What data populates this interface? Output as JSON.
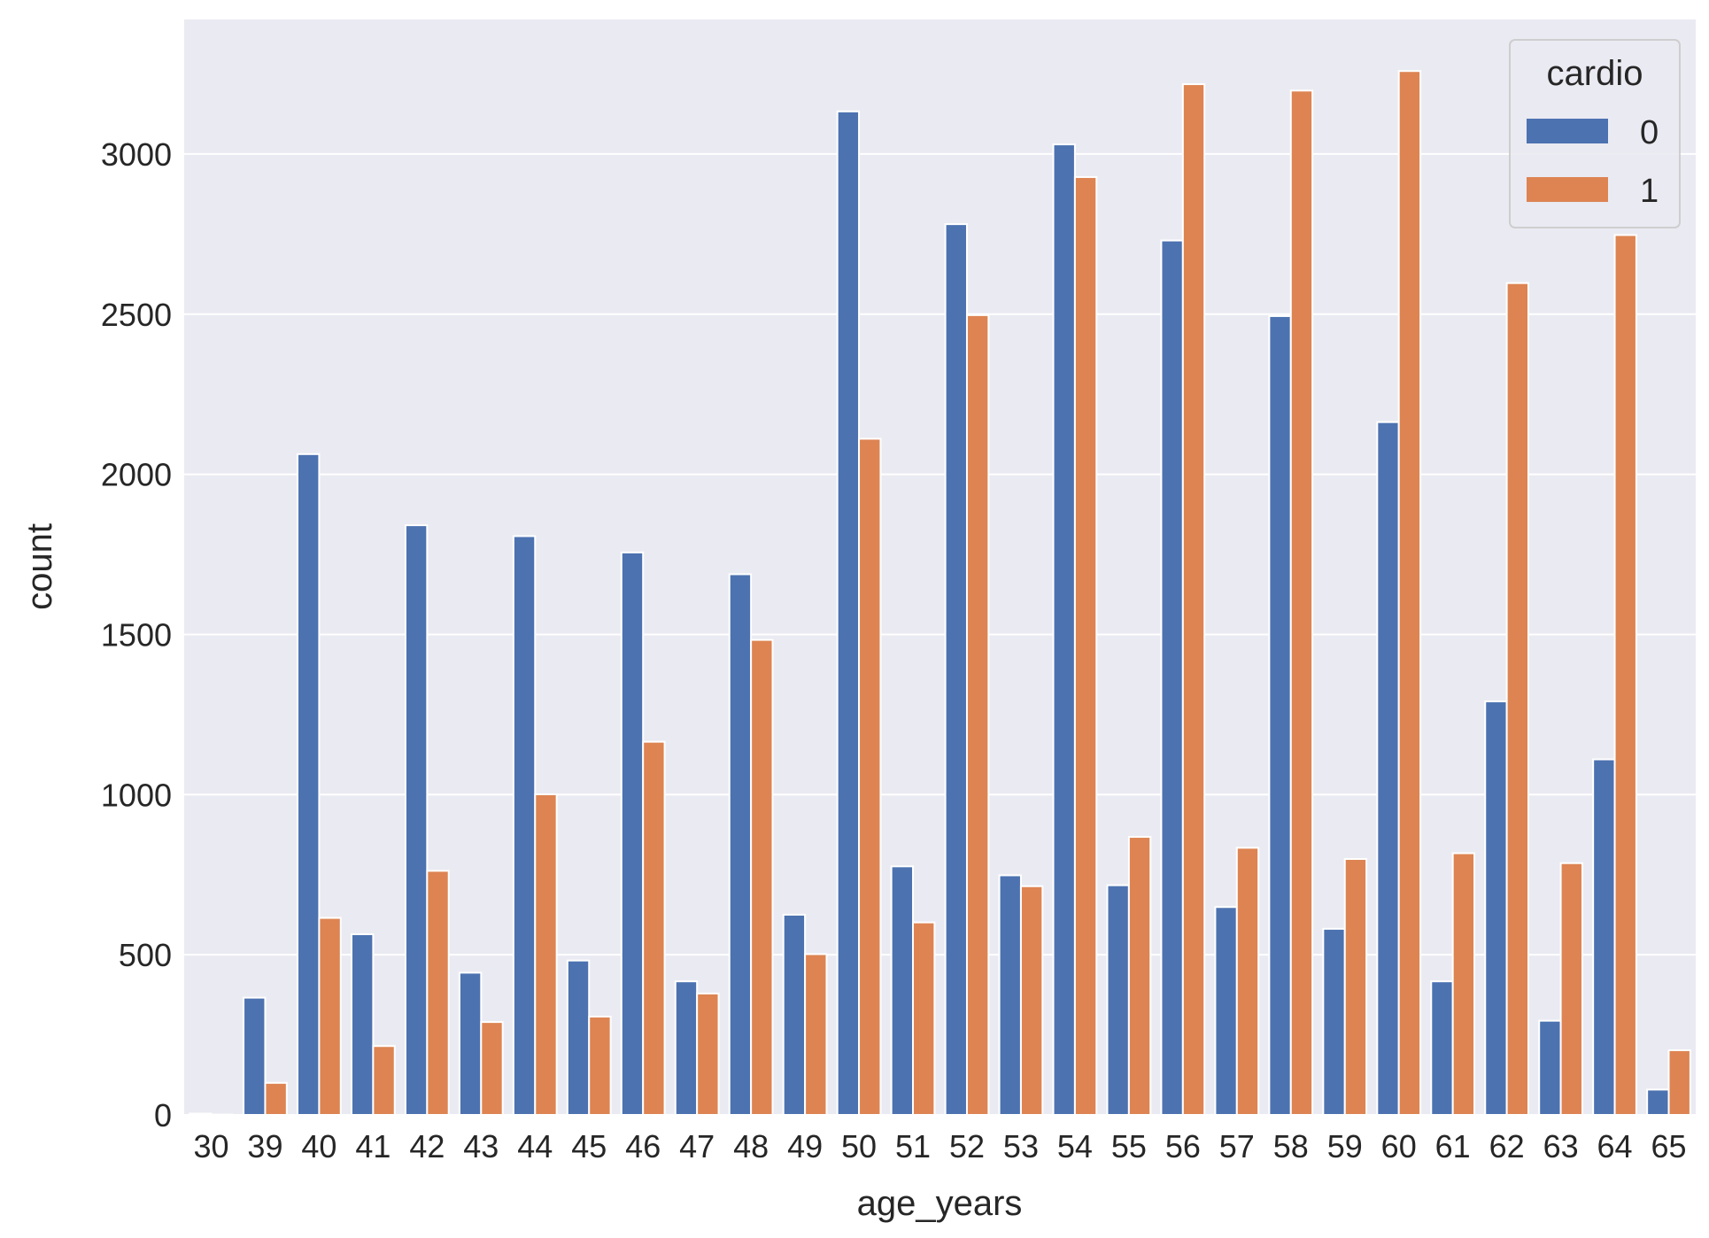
{
  "chart_data": {
    "type": "bar",
    "title": "",
    "xlabel": "age_years",
    "ylabel": "count",
    "ylim": [
      0,
      3420
    ],
    "yticks": [
      0,
      500,
      1000,
      1500,
      2000,
      2500,
      3000
    ],
    "grid": true,
    "categories": [
      "30",
      "39",
      "40",
      "41",
      "42",
      "43",
      "44",
      "45",
      "46",
      "47",
      "48",
      "49",
      "50",
      "51",
      "52",
      "53",
      "54",
      "55",
      "56",
      "57",
      "58",
      "59",
      "60",
      "61",
      "62",
      "63",
      "64",
      "65"
    ],
    "legend": {
      "title": "cardio",
      "placement": "top-right"
    },
    "series": [
      {
        "name": "0",
        "color": "#4c72b0",
        "values": [
          4,
          366,
          2063,
          564,
          1841,
          444,
          1807,
          482,
          1756,
          417,
          1688,
          625,
          3133,
          776,
          2781,
          748,
          3030,
          717,
          2730,
          649,
          2494,
          581,
          2163,
          417,
          1291,
          294,
          1110,
          79
        ]
      },
      {
        "name": "1",
        "color": "#dd8452",
        "values": [
          1,
          100,
          615,
          215,
          762,
          290,
          1001,
          307,
          1165,
          379,
          1483,
          502,
          2111,
          601,
          2497,
          714,
          2928,
          868,
          3218,
          834,
          3198,
          799,
          3259,
          817,
          2597,
          786,
          2747,
          202
        ]
      }
    ]
  }
}
